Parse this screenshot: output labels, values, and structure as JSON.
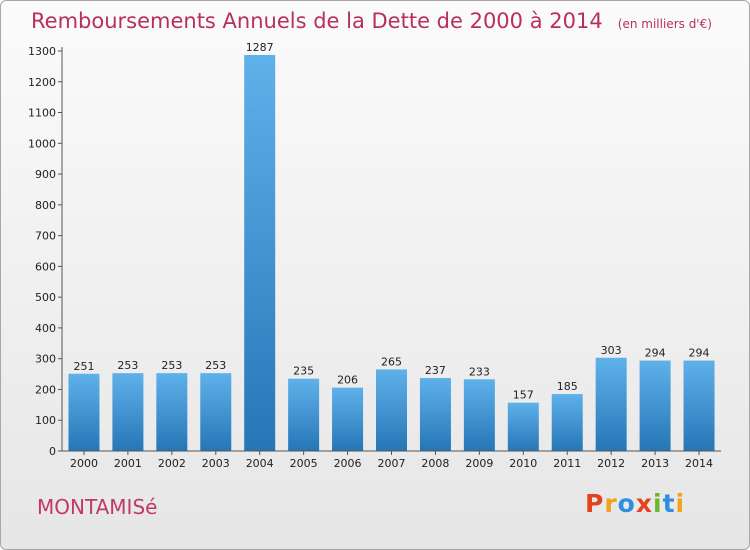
{
  "chart_data": {
    "type": "bar",
    "title": "Remboursements Annuels de la Dette de 2000 à 2014",
    "subtitle": "(en milliers d'€)",
    "categories": [
      "2000",
      "2001",
      "2002",
      "2003",
      "2004",
      "2005",
      "2006",
      "2007",
      "2008",
      "2009",
      "2010",
      "2011",
      "2012",
      "2013",
      "2014"
    ],
    "values": [
      251,
      253,
      253,
      253,
      1287,
      235,
      206,
      265,
      237,
      233,
      157,
      185,
      303,
      294,
      294
    ],
    "ylim": [
      0,
      1300
    ],
    "yticks": [
      0,
      100,
      200,
      300,
      400,
      500,
      600,
      700,
      800,
      900,
      1000,
      1100,
      1200,
      1300
    ],
    "grid": false,
    "colors": {
      "bar_light": "#5fb1ea",
      "bar_dark": "#2676b6",
      "title": "#b8305a"
    }
  },
  "commune": "MONTAMISé",
  "logo": {
    "text": "Proxiti",
    "letters": [
      {
        "ch": "P",
        "color": "#e3431f"
      },
      {
        "ch": "r",
        "color": "#f0a21a"
      },
      {
        "ch": "o",
        "color": "#2f8ee0"
      },
      {
        "ch": "x",
        "color": "#e3431f"
      },
      {
        "ch": "i",
        "color": "#6bb82a"
      },
      {
        "ch": "t",
        "color": "#2f8ee0"
      },
      {
        "ch": "i",
        "color": "#f0a21a"
      }
    ]
  }
}
